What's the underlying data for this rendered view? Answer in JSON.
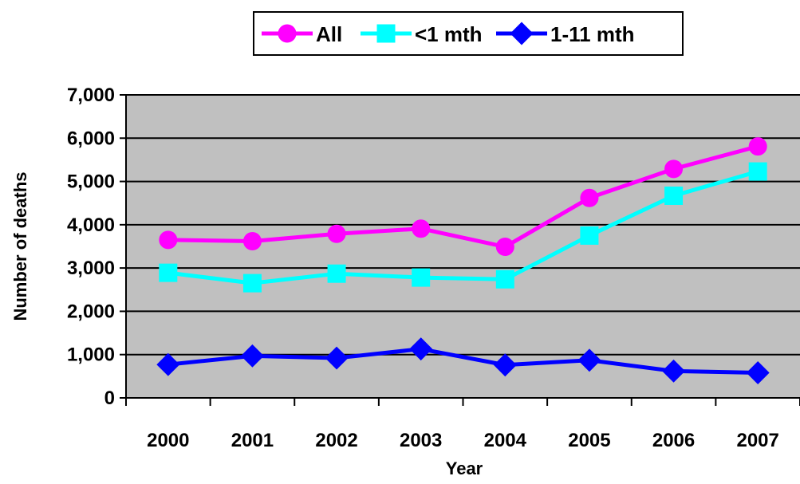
{
  "chart_data": {
    "type": "line",
    "title": "",
    "xlabel": "Year",
    "ylabel": "Number of deaths",
    "categories": [
      "2000",
      "2001",
      "2002",
      "2003",
      "2004",
      "2005",
      "2006",
      "2007"
    ],
    "ylim": [
      0,
      7000
    ],
    "yticks": [
      "0",
      "1,000",
      "2,000",
      "3,000",
      "4,000",
      "5,000",
      "6,000",
      "7,000"
    ],
    "grid": true,
    "legend_position": "top",
    "plot_background": "#c0c0c0",
    "series": [
      {
        "name": "All",
        "color": "#ff00ff",
        "marker": "circle",
        "values": [
          3650,
          3620,
          3790,
          3910,
          3490,
          4620,
          5290,
          5810
        ]
      },
      {
        "name": "<1 mth",
        "color": "#00ffff",
        "marker": "square",
        "values": [
          2890,
          2650,
          2870,
          2780,
          2740,
          3750,
          4670,
          5230
        ]
      },
      {
        "name": "1-11 mth",
        "color": "#0000ff",
        "marker": "diamond",
        "values": [
          770,
          970,
          920,
          1130,
          760,
          870,
          620,
          580
        ]
      }
    ]
  }
}
